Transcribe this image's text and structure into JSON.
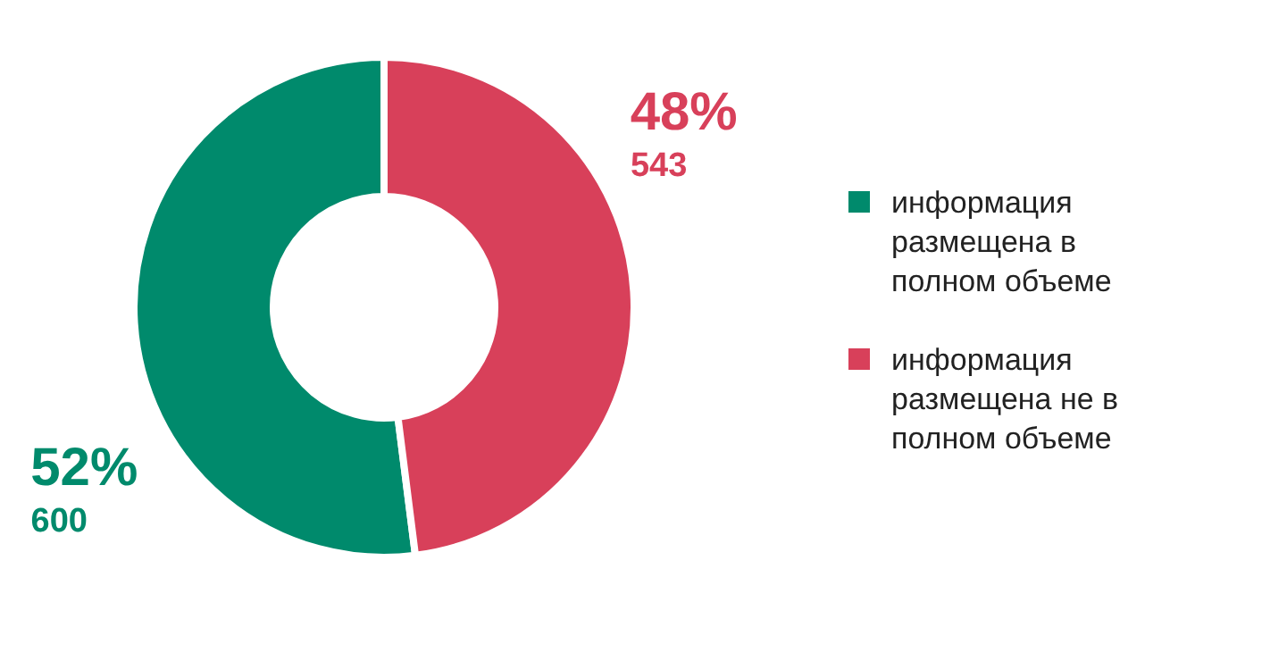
{
  "chart_data": {
    "type": "donut",
    "categories": [
      "информация размещена в полном объеме",
      "информация размещена не в полном объеме"
    ],
    "values": [
      52,
      48
    ],
    "colors": [
      "#008a6c",
      "#d8405a"
    ],
    "value_labels": [
      "52%",
      "48%"
    ],
    "annotations": [
      "600",
      "543"
    ],
    "legend": "right"
  }
}
